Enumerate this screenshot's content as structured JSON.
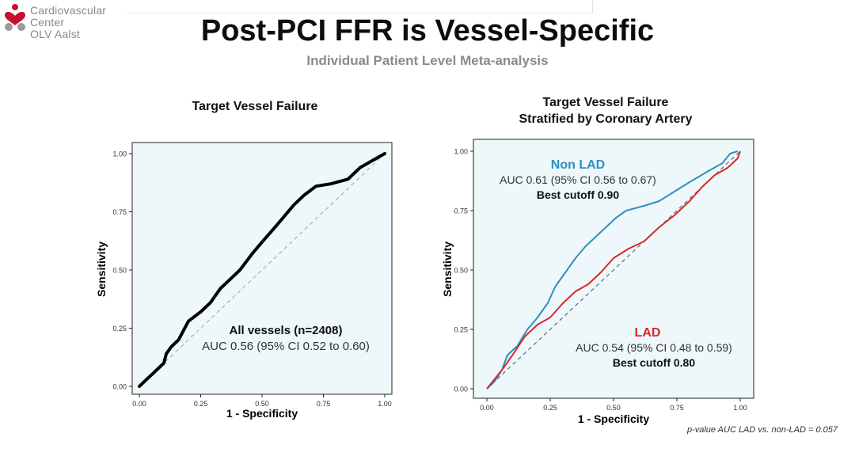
{
  "logo": {
    "line1": "Cardiovascular Center",
    "line2": "OLV Aalst",
    "heart_color": "#c8102e"
  },
  "header": {
    "title": "Post-PCI FFR is Vessel-Specific",
    "subtitle": "Individual Patient Level Meta-analysis"
  },
  "footnote": "p-value AUC LAD vs. non-LAD = 0.057",
  "chart_data": [
    {
      "type": "line",
      "title": "Target Vessel Failure",
      "xlabel": "1 - Specificity",
      "ylabel": "Sensitivity",
      "xlim": [
        0,
        1
      ],
      "ylim": [
        0,
        1
      ],
      "xticks": [
        "0.00",
        "0.25",
        "0.50",
        "0.75",
        "1.00"
      ],
      "yticks": [
        "0.00",
        "0.25",
        "0.50",
        "0.75",
        "1.00"
      ],
      "background": "#eef8fa",
      "reference_line": "diagonal-dashed",
      "series": [
        {
          "color": "#000000",
          "points": [
            [
              0,
              0
            ],
            [
              0.02,
              0.02
            ],
            [
              0.04,
              0.04
            ],
            [
              0.06,
              0.06
            ],
            [
              0.08,
              0.08
            ],
            [
              0.1,
              0.1
            ],
            [
              0.11,
              0.14
            ],
            [
              0.13,
              0.17
            ],
            [
              0.16,
              0.2
            ],
            [
              0.2,
              0.28
            ],
            [
              0.25,
              0.32
            ],
            [
              0.29,
              0.36
            ],
            [
              0.33,
              0.42
            ],
            [
              0.36,
              0.45
            ],
            [
              0.41,
              0.5
            ],
            [
              0.46,
              0.57
            ],
            [
              0.5,
              0.62
            ],
            [
              0.55,
              0.68
            ],
            [
              0.59,
              0.73
            ],
            [
              0.63,
              0.78
            ],
            [
              0.67,
              0.82
            ],
            [
              0.72,
              0.86
            ],
            [
              0.78,
              0.87
            ],
            [
              0.85,
              0.89
            ],
            [
              0.9,
              0.94
            ],
            [
              0.95,
              0.97
            ],
            [
              1.0,
              1.0
            ]
          ]
        }
      ],
      "annotation": {
        "label": "All vessels (n=2408)",
        "auc": "AUC 0.56 (95% CI 0.52 to 0.60)"
      }
    },
    {
      "type": "line",
      "title": "Target Vessel Failure",
      "subtitle": "Stratified by Coronary Artery",
      "xlabel": "1 - Specificity",
      "ylabel": "Sensitivity",
      "xlim": [
        0,
        1
      ],
      "ylim": [
        0,
        1
      ],
      "xticks": [
        "0.00",
        "0.25",
        "0.50",
        "0.75",
        "1.00"
      ],
      "yticks": [
        "0.00",
        "0.25",
        "0.50",
        "0.75",
        "1.00"
      ],
      "background": "#eef8fa",
      "reference_line": "diagonal-dashed",
      "series": [
        {
          "name": "Non LAD",
          "color": "#2f8fc2",
          "auc": "AUC 0.61 (95% CI 0.56 to 0.67)",
          "cutoff": "Best cutoff 0.90",
          "points": [
            [
              0,
              0
            ],
            [
              0.03,
              0.03
            ],
            [
              0.06,
              0.08
            ],
            [
              0.08,
              0.14
            ],
            [
              0.12,
              0.18
            ],
            [
              0.16,
              0.25
            ],
            [
              0.2,
              0.3
            ],
            [
              0.24,
              0.36
            ],
            [
              0.27,
              0.43
            ],
            [
              0.31,
              0.49
            ],
            [
              0.35,
              0.55
            ],
            [
              0.39,
              0.6
            ],
            [
              0.43,
              0.64
            ],
            [
              0.47,
              0.68
            ],
            [
              0.51,
              0.72
            ],
            [
              0.55,
              0.75
            ],
            [
              0.62,
              0.77
            ],
            [
              0.68,
              0.79
            ],
            [
              0.74,
              0.83
            ],
            [
              0.8,
              0.87
            ],
            [
              0.88,
              0.92
            ],
            [
              0.93,
              0.95
            ],
            [
              0.96,
              0.99
            ],
            [
              0.99,
              1.0
            ]
          ]
        },
        {
          "name": "LAD",
          "color": "#d9262e",
          "auc": "AUC 0.54 (95% CI 0.48 to 0.59)",
          "cutoff": "Best cutoff 0.80",
          "points": [
            [
              0,
              0
            ],
            [
              0.03,
              0.04
            ],
            [
              0.06,
              0.08
            ],
            [
              0.1,
              0.14
            ],
            [
              0.15,
              0.22
            ],
            [
              0.2,
              0.27
            ],
            [
              0.25,
              0.3
            ],
            [
              0.3,
              0.36
            ],
            [
              0.35,
              0.41
            ],
            [
              0.4,
              0.44
            ],
            [
              0.45,
              0.49
            ],
            [
              0.5,
              0.55
            ],
            [
              0.56,
              0.59
            ],
            [
              0.62,
              0.62
            ],
            [
              0.68,
              0.68
            ],
            [
              0.74,
              0.73
            ],
            [
              0.8,
              0.79
            ],
            [
              0.85,
              0.85
            ],
            [
              0.9,
              0.9
            ],
            [
              0.95,
              0.93
            ],
            [
              0.99,
              0.97
            ],
            [
              1.0,
              1.0
            ]
          ]
        }
      ]
    }
  ]
}
